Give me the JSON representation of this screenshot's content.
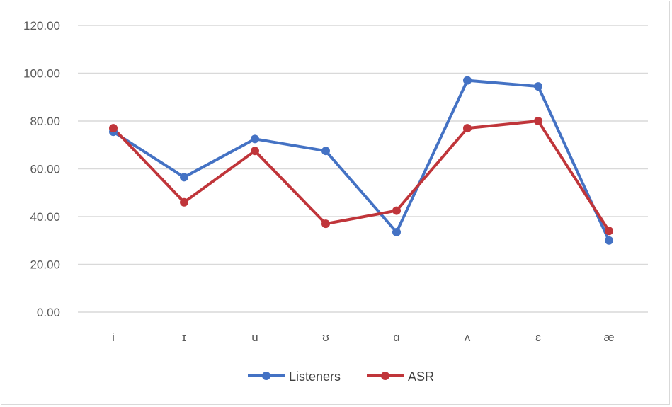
{
  "chart_data": {
    "type": "line",
    "title": "",
    "xlabel": "",
    "ylabel": "",
    "categories": [
      "i",
      "ɪ",
      "u",
      "ʊ",
      "ɑ",
      "ʌ",
      "ɛ",
      "æ"
    ],
    "y_ticks": [
      "0.00",
      "20.00",
      "40.00",
      "60.00",
      "80.00",
      "100.00",
      "120.00"
    ],
    "ylim": [
      0,
      120
    ],
    "grid": true,
    "legend_position": "bottom",
    "series": [
      {
        "name": "Listeners",
        "color": "#4472c4",
        "values": [
          75.5,
          56.5,
          72.5,
          67.5,
          33.5,
          97.0,
          94.5,
          30.0
        ]
      },
      {
        "name": "ASR",
        "color": "#c0353a",
        "values": [
          77.0,
          46.0,
          67.5,
          37.0,
          42.5,
          77.0,
          80.0,
          34.0
        ]
      }
    ]
  }
}
